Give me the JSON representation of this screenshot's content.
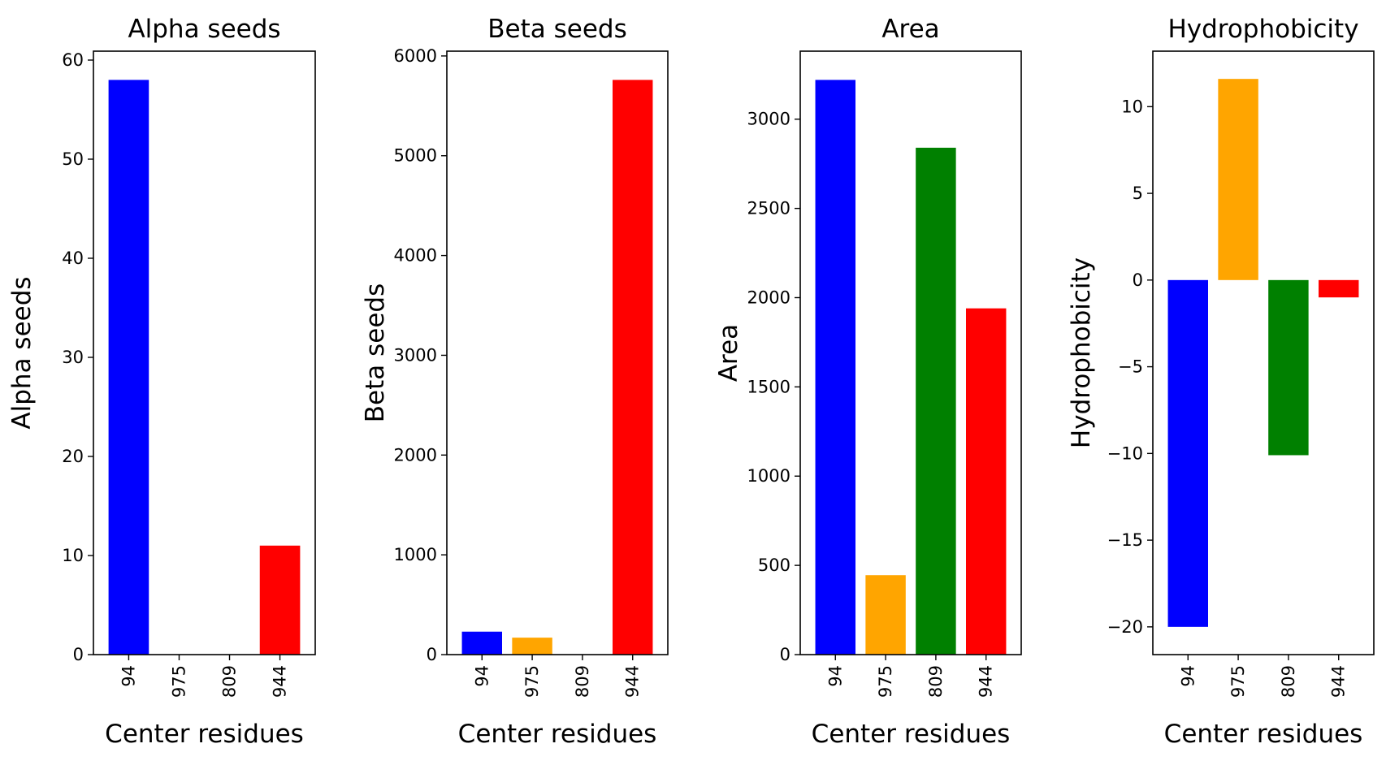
{
  "colors": {
    "blue": "#0000ff",
    "orange": "#ffa500",
    "green": "#008000",
    "red": "#ff0000"
  },
  "chart_data": [
    {
      "type": "bar",
      "title": "Alpha seeds",
      "xlabel": "Center residues",
      "ylabel": "Alpha seeds",
      "categories": [
        "94",
        "975",
        "809",
        "944"
      ],
      "values": [
        58,
        0,
        0,
        11
      ],
      "colors": [
        "#0000ff",
        "#ffa500",
        "#008000",
        "#ff0000"
      ],
      "ylim": [
        0,
        60.9
      ],
      "yticks": [
        0,
        10,
        20,
        30,
        40,
        50,
        60
      ],
      "ytick_labels": [
        "0",
        "10",
        "20",
        "30",
        "40",
        "50",
        "60"
      ]
    },
    {
      "type": "bar",
      "title": "Beta seeds",
      "xlabel": "Center residues",
      "ylabel": "Beta seeds",
      "categories": [
        "94",
        "975",
        "809",
        "944"
      ],
      "values": [
        230,
        170,
        0,
        5760
      ],
      "colors": [
        "#0000ff",
        "#ffa500",
        "#008000",
        "#ff0000"
      ],
      "ylim": [
        0,
        6048
      ],
      "yticks": [
        0,
        1000,
        2000,
        3000,
        4000,
        5000,
        6000
      ],
      "ytick_labels": [
        "0",
        "1000",
        "2000",
        "3000",
        "4000",
        "5000",
        "6000"
      ]
    },
    {
      "type": "bar",
      "title": "Area",
      "xlabel": "Center residues",
      "ylabel": "Area",
      "categories": [
        "94",
        "975",
        "809",
        "944"
      ],
      "values": [
        3220,
        445,
        2840,
        1940
      ],
      "colors": [
        "#0000ff",
        "#ffa500",
        "#008000",
        "#ff0000"
      ],
      "ylim": [
        0,
        3381
      ],
      "yticks": [
        0,
        500,
        1000,
        1500,
        2000,
        2500,
        3000
      ],
      "ytick_labels": [
        "0",
        "500",
        "1000",
        "1500",
        "2000",
        "2500",
        "3000"
      ]
    },
    {
      "type": "bar",
      "title": "Hydrophobicity",
      "xlabel": "Center residues",
      "ylabel": "Hydrophobicity",
      "categories": [
        "94",
        "975",
        "809",
        "944"
      ],
      "values": [
        -20,
        11.6,
        -10.1,
        -1
      ],
      "colors": [
        "#0000ff",
        "#ffa500",
        "#008000",
        "#ff0000"
      ],
      "ylim": [
        -21.6,
        13.2
      ],
      "yticks": [
        -20,
        -15,
        -10,
        -5,
        0,
        5,
        10
      ],
      "ytick_labels": [
        "−20",
        "−15",
        "−10",
        "−5",
        "0",
        "5",
        "10"
      ]
    }
  ]
}
